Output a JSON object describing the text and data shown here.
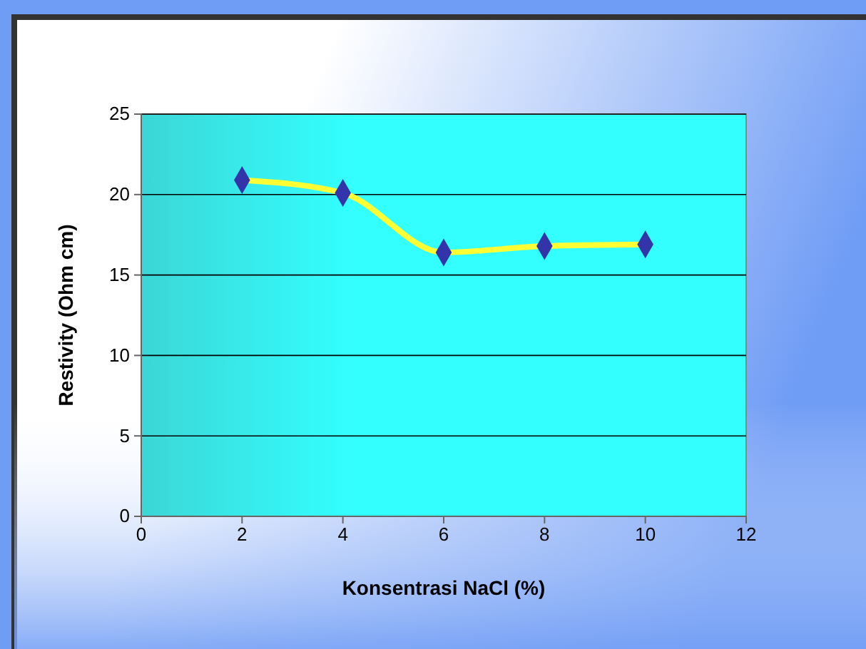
{
  "chart_data": {
    "type": "line",
    "xlabel": "Konsentrasi NaCl (%)",
    "ylabel": "Restivity (Ohm cm)",
    "x": [
      2,
      4,
      6,
      8,
      10
    ],
    "series": [
      {
        "color": "#ffff33",
        "values": [
          20.9,
          20.1,
          16.4,
          16.8,
          16.9
        ]
      }
    ],
    "xlim": [
      0,
      12
    ],
    "xticks": [
      0,
      2,
      4,
      6,
      8,
      10,
      12
    ],
    "ylim": [
      0,
      25
    ],
    "yticks": [
      0,
      5,
      10,
      15,
      20,
      25
    ],
    "grid": "y",
    "marker": "diamond",
    "line_style": "solid"
  }
}
